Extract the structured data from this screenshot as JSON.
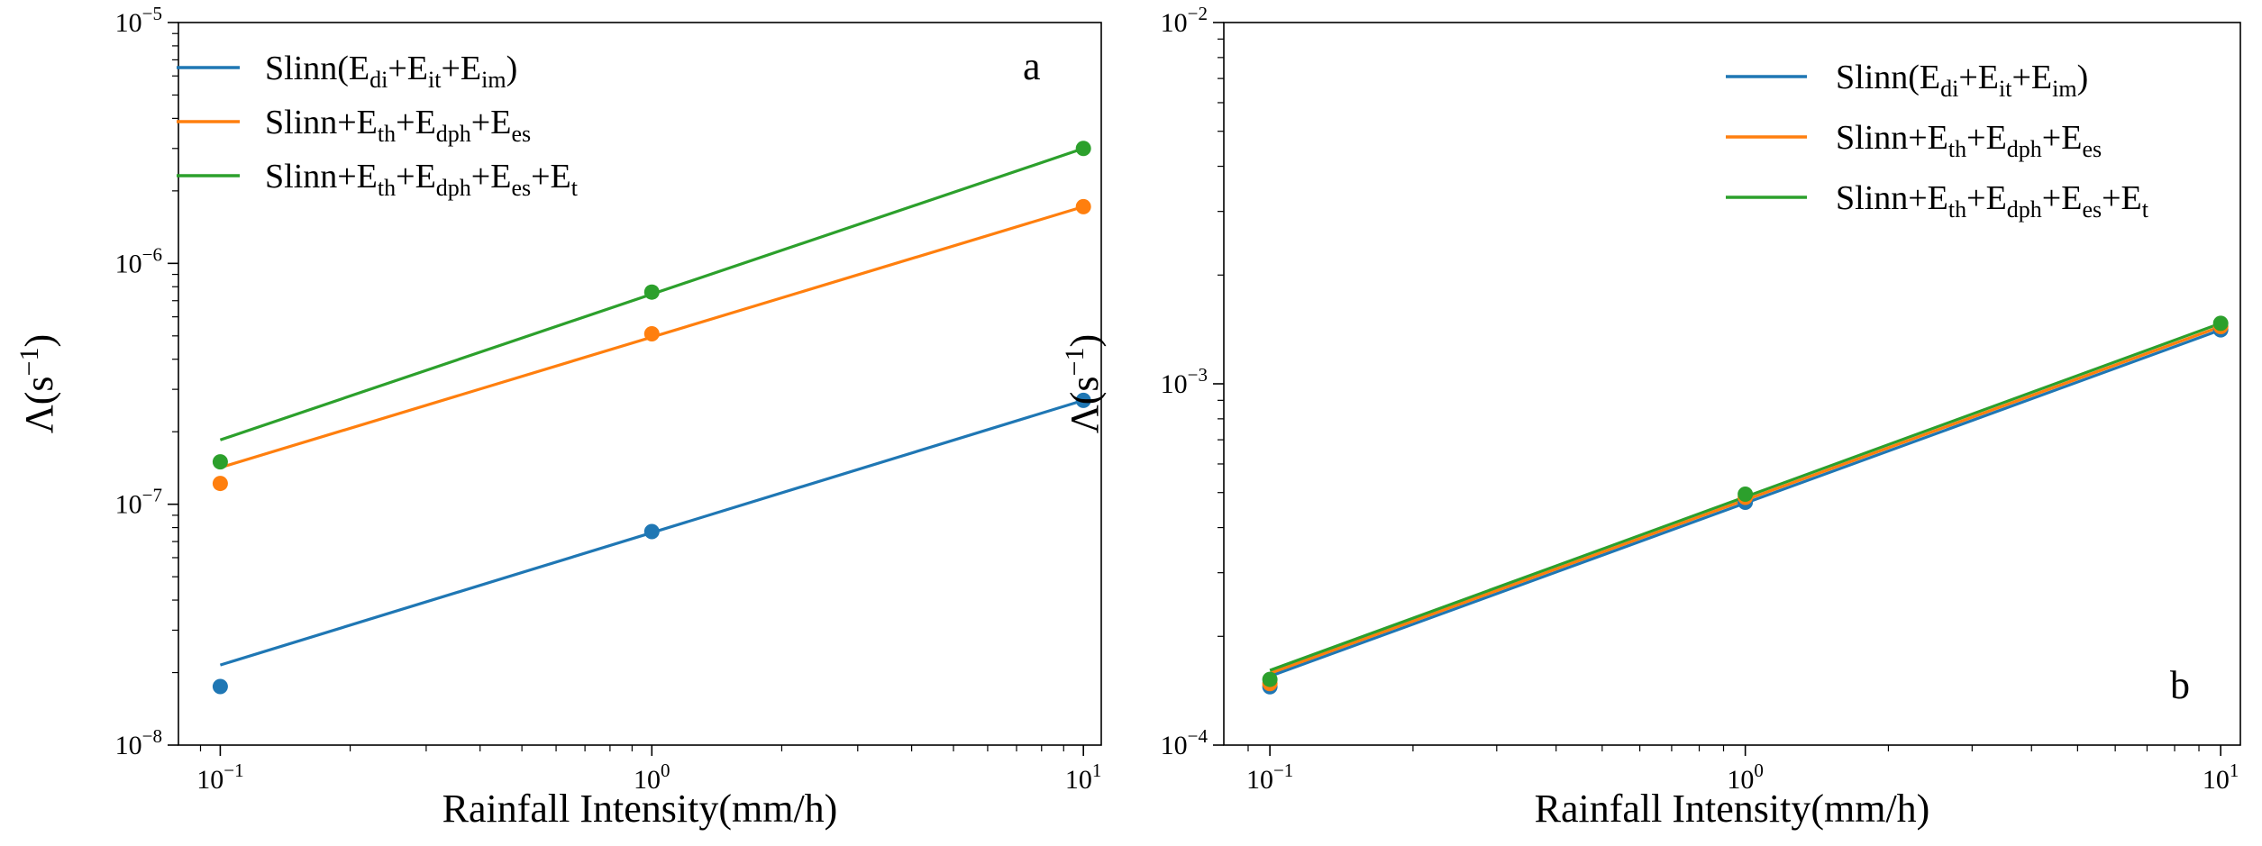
{
  "chart_data": [
    {
      "type": "line",
      "panel_label": "a",
      "xscale": "log",
      "yscale": "log",
      "xlabel": "Rainfall Intensity(mm/h)",
      "ylabel_base": "Λ(s",
      "ylabel_exp": "−1",
      "ylabel_close": ")",
      "xlim": [
        0.08,
        11
      ],
      "ylim": [
        1e-08,
        1e-05
      ],
      "x_ticks": [
        {
          "value": 0.1,
          "base": "10",
          "exp": "−1"
        },
        {
          "value": 1,
          "base": "10",
          "exp": "0"
        },
        {
          "value": 10,
          "base": "10",
          "exp": "1"
        }
      ],
      "y_ticks": [
        {
          "value": 1e-08,
          "base": "10",
          "exp": "−8"
        },
        {
          "value": 1e-07,
          "base": "10",
          "exp": "−7"
        },
        {
          "value": 1e-06,
          "base": "10",
          "exp": "−6"
        },
        {
          "value": 1e-05,
          "base": "10",
          "exp": "−5"
        }
      ],
      "legend_position": "top-left",
      "series": [
        {
          "name": "Slinn(Edi+Eit+Eim)",
          "legend_parts": [
            {
              "t": "Slinn(E"
            },
            {
              "s": "di"
            },
            {
              "t": "+E"
            },
            {
              "s": "it"
            },
            {
              "t": "+E"
            },
            {
              "s": "im"
            },
            {
              "t": ")"
            }
          ],
          "color": "#1f77b4",
          "points": {
            "x": [
              0.1,
              1,
              10
            ],
            "y": [
              1.75e-08,
              7.7e-08,
              2.7e-07
            ]
          },
          "fit": {
            "x": [
              0.1,
              10
            ],
            "y": [
              2.15e-08,
              2.7e-07
            ]
          }
        },
        {
          "name": "Slinn+Eth+Edph+Ees",
          "legend_parts": [
            {
              "t": "Slinn+E"
            },
            {
              "s": "th"
            },
            {
              "t": "+E"
            },
            {
              "s": "dph"
            },
            {
              "t": "+E"
            },
            {
              "s": "es"
            }
          ],
          "color": "#ff7f0e",
          "points": {
            "x": [
              0.1,
              1,
              10
            ],
            "y": [
              1.22e-07,
              5.1e-07,
              1.72e-06
            ]
          },
          "fit": {
            "x": [
              0.1,
              10
            ],
            "y": [
              1.42e-07,
              1.72e-06
            ]
          }
        },
        {
          "name": "Slinn+Eth+Edph+Ees+Et",
          "legend_parts": [
            {
              "t": "Slinn+E"
            },
            {
              "s": "th"
            },
            {
              "t": "+E"
            },
            {
              "s": "dph"
            },
            {
              "t": "+E"
            },
            {
              "s": "es"
            },
            {
              "t": "+E"
            },
            {
              "s": "t"
            }
          ],
          "color": "#2ca02c",
          "points": {
            "x": [
              0.1,
              1,
              10
            ],
            "y": [
              1.5e-07,
              7.6e-07,
              3e-06
            ]
          },
          "fit": {
            "x": [
              0.1,
              10
            ],
            "y": [
              1.85e-07,
              3e-06
            ]
          }
        }
      ]
    },
    {
      "type": "line",
      "panel_label": "b",
      "xscale": "log",
      "yscale": "log",
      "xlabel": "Rainfall Intensity(mm/h)",
      "ylabel_base": "Λ(s",
      "ylabel_exp": "−1",
      "ylabel_close": ")",
      "xlim": [
        0.08,
        11
      ],
      "ylim": [
        0.0001,
        0.01
      ],
      "x_ticks": [
        {
          "value": 0.1,
          "base": "10",
          "exp": "−1"
        },
        {
          "value": 1,
          "base": "10",
          "exp": "0"
        },
        {
          "value": 10,
          "base": "10",
          "exp": "1"
        }
      ],
      "y_ticks": [
        {
          "value": 0.0001,
          "base": "10",
          "exp": "−4"
        },
        {
          "value": 0.001,
          "base": "10",
          "exp": "−3"
        },
        {
          "value": 0.01,
          "base": "10",
          "exp": "−2"
        }
      ],
      "legend_position": "top-right",
      "series": [
        {
          "name": "Slinn(Edi+Eit+Eim)",
          "legend_parts": [
            {
              "t": "Slinn(E"
            },
            {
              "s": "di"
            },
            {
              "t": "+E"
            },
            {
              "s": "it"
            },
            {
              "t": "+E"
            },
            {
              "s": "im"
            },
            {
              "t": ")"
            }
          ],
          "color": "#1f77b4",
          "points": {
            "x": [
              0.1,
              1,
              10
            ],
            "y": [
              0.000145,
              0.00047,
              0.00141
            ]
          },
          "fit": {
            "x": [
              0.1,
              10
            ],
            "y": [
              0.000155,
              0.00141
            ]
          }
        },
        {
          "name": "Slinn+Eth+Edph+Ees",
          "legend_parts": [
            {
              "t": "Slinn+E"
            },
            {
              "s": "th"
            },
            {
              "t": "+E"
            },
            {
              "s": "dph"
            },
            {
              "t": "+E"
            },
            {
              "s": "es"
            }
          ],
          "color": "#ff7f0e",
          "points": {
            "x": [
              0.1,
              1,
              10
            ],
            "y": [
              0.000148,
              0.000485,
              0.00144
            ]
          },
          "fit": {
            "x": [
              0.1,
              10
            ],
            "y": [
              0.000158,
              0.00144
            ]
          }
        },
        {
          "name": "Slinn+Eth+Edph+Ees+Et",
          "legend_parts": [
            {
              "t": "Slinn+E"
            },
            {
              "s": "th"
            },
            {
              "t": "+E"
            },
            {
              "s": "dph"
            },
            {
              "t": "+E"
            },
            {
              "s": "es"
            },
            {
              "t": "+E"
            },
            {
              "s": "t"
            }
          ],
          "color": "#2ca02c",
          "points": {
            "x": [
              0.1,
              1,
              10
            ],
            "y": [
              0.000152,
              0.000495,
              0.00147
            ]
          },
          "fit": {
            "x": [
              0.1,
              10
            ],
            "y": [
              0.000161,
              0.00147
            ]
          }
        }
      ]
    }
  ]
}
